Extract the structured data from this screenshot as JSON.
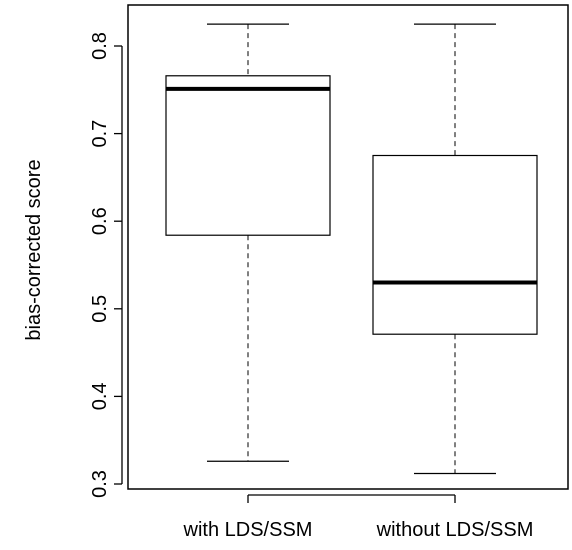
{
  "chart_data": {
    "type": "box",
    "title": "",
    "xlabel": "",
    "ylabel": "bias-corrected score",
    "ylim": [
      0.29,
      0.84
    ],
    "yticks": [
      0.3,
      0.4,
      0.5,
      0.6,
      0.7,
      0.8
    ],
    "ytick_labels": [
      "0.3",
      "0.4",
      "0.5",
      "0.6",
      "0.7",
      "0.8"
    ],
    "categories": [
      "with LDS/SSM",
      "without LDS/SSM"
    ],
    "boxes": [
      {
        "label": "with LDS/SSM",
        "min": 0.326,
        "q1": 0.584,
        "median": 0.751,
        "q3": 0.766,
        "max": 0.825
      },
      {
        "label": "without LDS/SSM",
        "min": 0.312,
        "q1": 0.471,
        "median": 0.53,
        "q3": 0.675,
        "max": 0.825
      }
    ],
    "grid": false,
    "legend": "none"
  }
}
